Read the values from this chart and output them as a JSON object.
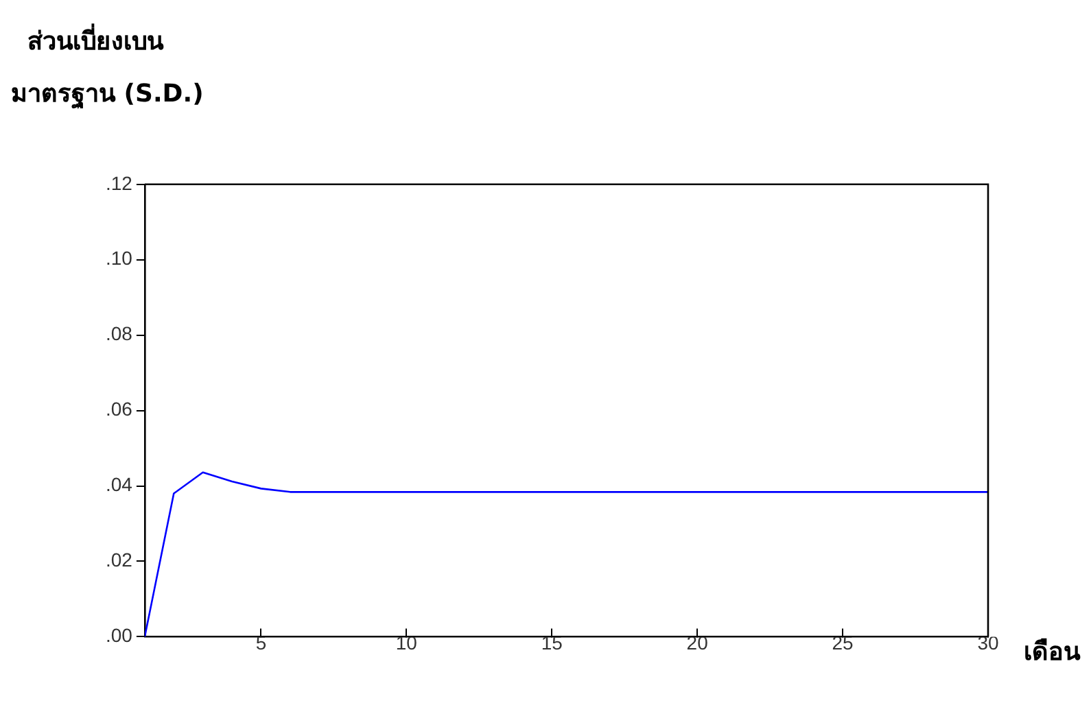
{
  "chart_data": {
    "type": "line",
    "ylabel": "ส่วนเบี่ยงเบน\nมาตรฐาน (S.D.)",
    "xlabel": "เดือน",
    "x": [
      1,
      2,
      3,
      4,
      5,
      6,
      7,
      8,
      9,
      10,
      11,
      12,
      13,
      14,
      15,
      16,
      17,
      18,
      19,
      20,
      21,
      22,
      23,
      24,
      25,
      26,
      27,
      28,
      29,
      30
    ],
    "series": [
      {
        "color": "#0000ff",
        "values": [
          0,
          0.038,
          0.0436,
          0.0412,
          0.0393,
          0.0384,
          0.0384,
          0.0384,
          0.0384,
          0.0384,
          0.0384,
          0.0384,
          0.0384,
          0.0384,
          0.0384,
          0.0384,
          0.0384,
          0.0384,
          0.0384,
          0.0384,
          0.0384,
          0.0384,
          0.0384,
          0.0384,
          0.0384,
          0.0384,
          0.0384,
          0.0384,
          0.0384,
          0.0384
        ]
      }
    ],
    "xlim": [
      1,
      30
    ],
    "xticks": [
      5,
      10,
      15,
      20,
      25,
      30
    ],
    "ylim": [
      0,
      0.12
    ],
    "yticks": [
      {
        "value": 0,
        "label": ".00"
      },
      {
        "value": 0.02,
        "label": ".02"
      },
      {
        "value": 0.04,
        "label": ".04"
      },
      {
        "value": 0.06,
        "label": ".06"
      },
      {
        "value": 0.08,
        "label": ".08"
      },
      {
        "value": 0.1,
        "label": ".10"
      },
      {
        "value": 0.12,
        "label": ".12"
      }
    ],
    "grid": false,
    "legend": false,
    "marker": "none",
    "line_style": "solid"
  }
}
